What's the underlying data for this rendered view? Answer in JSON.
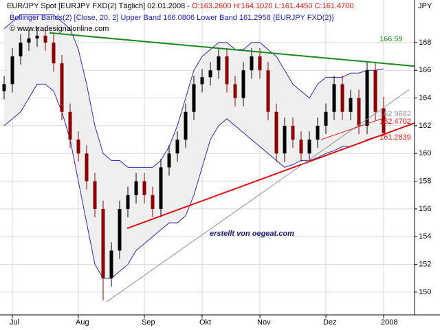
{
  "chart_data": {
    "type": "candlestick",
    "title": "EUR/JPY Spot [EURJPY FXD(2)  Täglich] 02.01.2008 -",
    "ohlc_label": "O:163.2600 H:164.1020 L:161.4450 C:161.4700",
    "indicator_label": "Bollinger Bands(2) [Close, 20, 2] Upper Band 166.0806 Lower Band 161.2958 {EURJPY FXD(2)}",
    "copyright": "© www.tradesignalonline.com",
    "y_label": "JPY",
    "watermark": "erstellt von oegeat.com",
    "categories": [
      null,
      "Jul",
      null,
      null,
      null,
      null,
      null,
      null,
      null,
      "Aug",
      null,
      null,
      null,
      null,
      null,
      null,
      null,
      "Sep",
      null,
      null,
      null,
      null,
      null,
      null,
      "Okt",
      null,
      null,
      null,
      null,
      null,
      null,
      "Nov",
      null,
      null,
      null,
      null,
      null,
      null,
      null,
      "Dez",
      null,
      null,
      null,
      null,
      null,
      null,
      "2008"
    ],
    "open": [
      164.5,
      165,
      167,
      168,
      168.3,
      168.5,
      168,
      166.5,
      163,
      161,
      160,
      158,
      156,
      151,
      153,
      156,
      157,
      158,
      157,
      156,
      159,
      160,
      161,
      163,
      165,
      165.5,
      166,
      167,
      165,
      164,
      166,
      167,
      166,
      163,
      160,
      162,
      161,
      160,
      161,
      162,
      163,
      165,
      163,
      164,
      162,
      166,
      163.26
    ],
    "high": [
      165.6,
      167.6,
      168.6,
      168.9,
      169.1,
      169.1,
      168.6,
      167.1,
      163.6,
      161.6,
      160.6,
      158.6,
      156.6,
      153.6,
      156.6,
      157.6,
      158.6,
      158.6,
      157.6,
      159.6,
      160.6,
      161.6,
      163.6,
      165.6,
      166.1,
      166.6,
      167.6,
      167.6,
      165.6,
      166.6,
      167.6,
      167.6,
      166.6,
      163.6,
      162.6,
      162.6,
      161.6,
      161.6,
      162.6,
      163.6,
      165.6,
      165.6,
      164.6,
      164.6,
      166.6,
      166.6,
      164.1
    ],
    "low": [
      163.9,
      164.4,
      166.4,
      167.4,
      167.7,
      167.4,
      165.9,
      162.4,
      160.4,
      159.4,
      157.4,
      155.4,
      149.4,
      150.4,
      152.4,
      155.4,
      156.4,
      156.4,
      155.4,
      155.4,
      158.4,
      159.4,
      160.4,
      162.4,
      164.4,
      164.9,
      165.4,
      164.4,
      163.4,
      163.4,
      165.4,
      165.4,
      162.4,
      159.4,
      159.4,
      160.4,
      159.4,
      159.4,
      160.4,
      161.4,
      162.4,
      162.4,
      162.4,
      161.4,
      161.4,
      162.4,
      161.445
    ],
    "close": [
      165,
      167,
      168,
      168.3,
      168.5,
      168,
      166.5,
      163,
      161,
      160,
      158,
      156,
      151,
      153,
      156,
      157,
      158,
      157,
      156,
      159,
      160,
      161,
      163,
      165,
      165.5,
      166,
      167,
      165,
      164,
      166,
      167,
      166,
      163,
      160,
      162,
      161,
      160,
      161,
      162,
      163,
      165,
      163,
      164,
      162,
      166,
      163,
      161.47
    ],
    "up_color": "#000000",
    "down_color": "#8b0000",
    "bands": [
      {
        "color": "#2828b4",
        "values": [
          169,
          169.5,
          170,
          170,
          170,
          170,
          170,
          169.5,
          169,
          167.5,
          165,
          162,
          160,
          159.5,
          159.5,
          159,
          159,
          159,
          159,
          159.5,
          160.5,
          162,
          164,
          166,
          167,
          167.5,
          168,
          168,
          167.5,
          167.5,
          168,
          168,
          167.5,
          167,
          166,
          165,
          164.5,
          164,
          165,
          165.5,
          165.5,
          165.5,
          165.8,
          165.8,
          166,
          166,
          166.1
        ]
      },
      {
        "color": "#2828b4",
        "values": [
          162,
          162.5,
          163,
          164,
          165,
          165,
          164.5,
          163,
          161,
          158,
          155,
          152,
          151,
          151,
          151.5,
          152,
          153,
          153.5,
          154,
          154.5,
          155,
          155,
          155.5,
          157,
          159,
          161,
          162,
          162.5,
          162,
          161.5,
          161,
          160.5,
          160,
          159.5,
          159,
          159.2,
          159.5,
          159.5,
          159.7,
          160,
          160.2,
          160.5,
          160.5,
          160.7,
          161,
          161.2,
          161.3
        ]
      }
    ],
    "trendlines": [
      {
        "color": "#1a8a1a",
        "values": [
          168.7,
          166.3
        ]
      },
      {
        "color": "#e01010",
        "values": [
          154.6,
          162.2
        ]
      },
      {
        "color": "#909090",
        "values": [
          149.3,
          164.6
        ]
      },
      {
        "color": "#e01010",
        "values": [
          161,
          162.5
        ]
      }
    ],
    "annotations": [
      {
        "text": "166.59",
        "color": "#1a8a1a"
      },
      {
        "text": "162.9682",
        "color": "#909090"
      },
      {
        "text": "162.4702",
        "color": "#e01010"
      },
      {
        "text": "161.2839",
        "color": "#e01010"
      }
    ],
    "ylim": [
      148.36,
      171.07
    ],
    "yticks": [
      150,
      152,
      154,
      156,
      158,
      160,
      162,
      164,
      166,
      168
    ],
    "grid": true
  }
}
